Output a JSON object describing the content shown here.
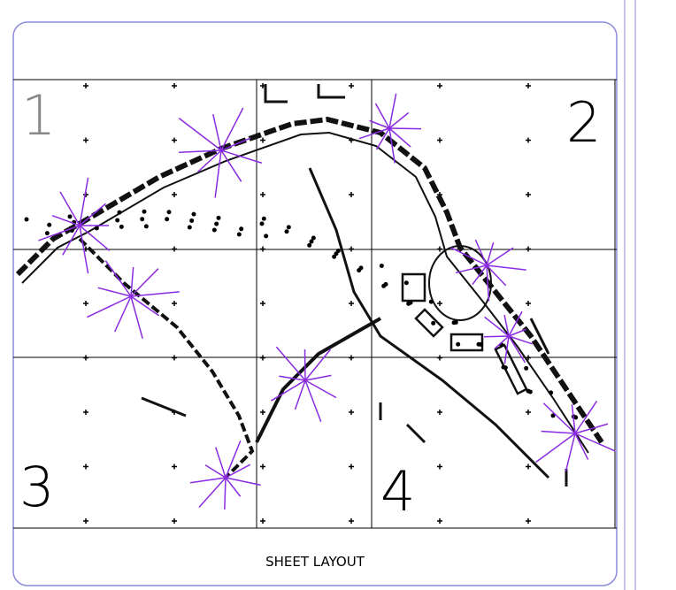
{
  "sheets": [
    {
      "label": "1"
    },
    {
      "label": "2"
    },
    {
      "label": "3"
    },
    {
      "label": "4"
    }
  ],
  "caption": "SHEET LAYOUT"
}
